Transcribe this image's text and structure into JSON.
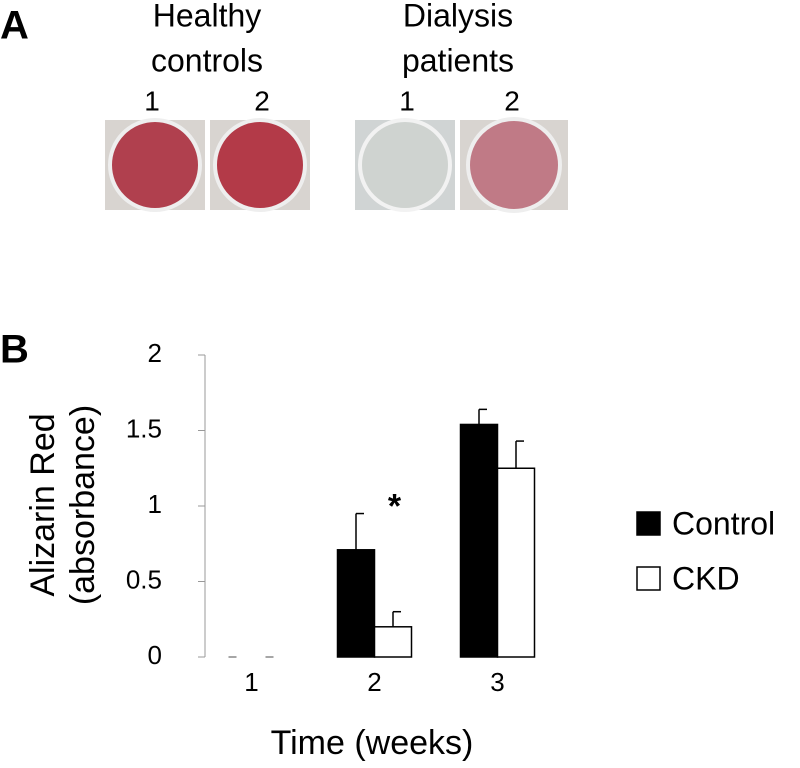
{
  "panel_a": {
    "label": "A",
    "groups": [
      {
        "lines": [
          "Healthy",
          "controls"
        ],
        "wells": [
          "1",
          "2"
        ]
      },
      {
        "lines": [
          "Dialysis",
          "patients"
        ],
        "wells": [
          "1",
          "2"
        ]
      }
    ]
  },
  "chart_data": {
    "type": "bar",
    "panel_label": "B",
    "ylabel": [
      "Alizarin Red",
      "(absorbance)"
    ],
    "xlabel": "Time (weeks)",
    "categories": [
      "1",
      "2",
      "3"
    ],
    "series": [
      {
        "name": "Control",
        "color": "#000000",
        "values": [
          0,
          0.71,
          1.54
        ],
        "errors": [
          0,
          0.24,
          0.1
        ]
      },
      {
        "name": "CKD",
        "color": "#ffffff",
        "values": [
          0,
          0.2,
          1.25
        ],
        "errors": [
          0,
          0.1,
          0.18
        ]
      }
    ],
    "annotations": [
      {
        "text": "*",
        "category": 1
      }
    ],
    "ylim": [
      0,
      2
    ],
    "yticks": [
      0,
      0.5,
      1,
      1.5,
      2
    ],
    "legend": "right"
  }
}
